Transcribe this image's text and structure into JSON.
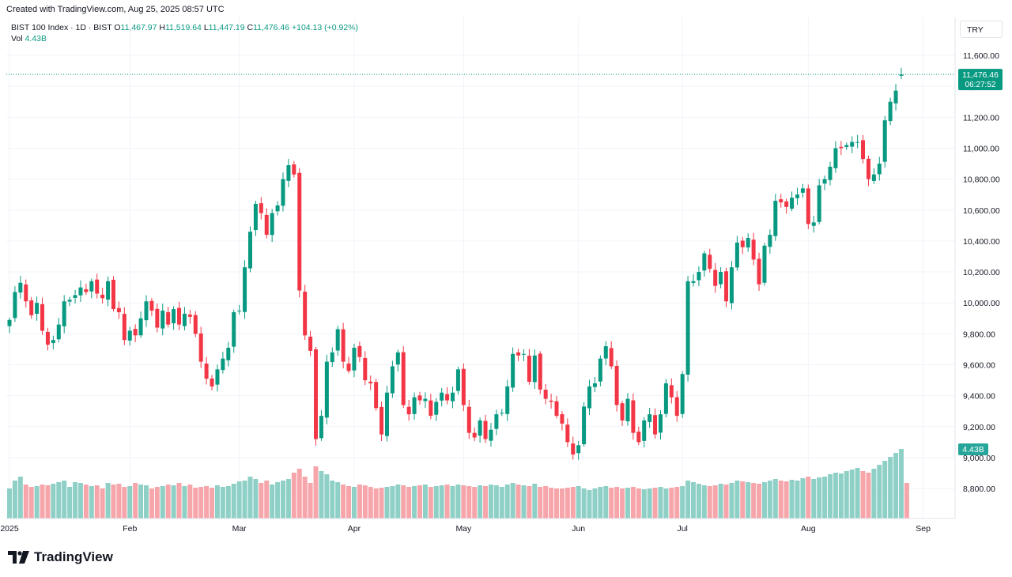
{
  "header": {
    "created_text": "Created with TradingView.com, Aug 25, 2025 08:57 UTC"
  },
  "legend": {
    "name": "BIST 100 Index · 1D · BIST",
    "open_label": "O",
    "open": "11,467.97",
    "high_label": "H",
    "high": "11,519.64",
    "low_label": "L",
    "low": "11,447.19",
    "close_label": "C",
    "close": "11,476.46",
    "change": "+104.13 (+0.92%)",
    "vol_label": "Vol",
    "vol": "4.43B"
  },
  "currency": "TRY",
  "price_tag": {
    "price": "11,476.46",
    "countdown": "06:27:52"
  },
  "volume_tag": "4.43B",
  "footer": {
    "logo_text": "TradingView"
  },
  "colors": {
    "up": "#089981",
    "down": "#f23645",
    "vol_up": "#8fd0c6",
    "vol_down": "#f6a6ab",
    "grid": "#f0f3fa"
  },
  "chart_data": {
    "type": "candlestick",
    "title": "BIST 100 Index · 1D · BIST",
    "y_ticks": [
      "11,600.00",
      "11,400.00",
      "11,200.00",
      "11,000.00",
      "10,800.00",
      "10,600.00",
      "10,400.00",
      "10,200.00",
      "10,000.00",
      "9,800.00",
      "9,600.00",
      "9,400.00",
      "9,200.00",
      "9,000.00",
      "8,800.00"
    ],
    "y_tick_values": [
      11600,
      11400,
      11200,
      11000,
      10800,
      10600,
      10400,
      10200,
      10000,
      9800,
      9600,
      9400,
      9200,
      9000,
      8800
    ],
    "ylim": [
      8620,
      11760
    ],
    "x_labels": [
      {
        "label": "2025",
        "index": 0
      },
      {
        "label": "Feb",
        "index": 22
      },
      {
        "label": "Mar",
        "index": 42
      },
      {
        "label": "Apr",
        "index": 63
      },
      {
        "label": "May",
        "index": 83
      },
      {
        "label": "Jun",
        "index": 104
      },
      {
        "label": "Jul",
        "index": 123
      },
      {
        "label": "Aug",
        "index": 146
      },
      {
        "label": "Sep",
        "index": 167
      }
    ],
    "x_count": 169,
    "grid": true,
    "close_start": 9890,
    "closes": [
      9890,
      10070,
      10130,
      10010,
      9920,
      10000,
      9820,
      9730,
      9760,
      9860,
      10010,
      10020,
      10050,
      10100,
      10070,
      10140,
      10060,
      10030,
      10140,
      9960,
      9940,
      9760,
      9820,
      9790,
      9900,
      10010,
      9950,
      9840,
      9950,
      9860,
      9960,
      9860,
      9930,
      9910,
      9800,
      9620,
      9510,
      9460,
      9570,
      9640,
      9710,
      9940,
      9950,
      10230,
      10460,
      10640,
      10580,
      10440,
      10580,
      10630,
      10800,
      10890,
      10830,
      10080,
      9790,
      9690,
      9120,
      9270,
      9620,
      9680,
      9830,
      9620,
      9560,
      9710,
      9650,
      9500,
      9480,
      9320,
      9150,
      9420,
      9590,
      9680,
      9340,
      9280,
      9390,
      9370,
      9380,
      9270,
      9360,
      9420,
      9370,
      9420,
      9570,
      9340,
      9160,
      9130,
      9240,
      9120,
      9180,
      9280,
      9290,
      9460,
      9670,
      9660,
      9670,
      9490,
      9660,
      9440,
      9380,
      9360,
      9270,
      9220,
      9100,
      9020,
      9080,
      9330,
      9460,
      9480,
      9640,
      9720,
      9590,
      9340,
      9240,
      9380,
      9160,
      9100,
      9240,
      9280,
      9150,
      9280,
      9480,
      9390,
      9270,
      9540,
      10140,
      10140,
      10200,
      10320,
      10220,
      10110,
      10200,
      10010,
      10230,
      10390,
      10360,
      10420,
      10280,
      10120,
      10370,
      10440,
      10660,
      10650,
      10620,
      10680,
      10700,
      10740,
      10510,
      10520,
      10760,
      10800,
      10880,
      11000,
      11000,
      11020,
      11040,
      11040,
      10930,
      10800,
      10830,
      10900,
      11180,
      11300,
      11372,
      11476
    ],
    "volumes": [
      0.9,
      1.0,
      1.05,
      0.95,
      0.92,
      0.93,
      0.95,
      0.94,
      0.96,
      0.98,
      1.0,
      0.92,
      0.98,
      0.97,
      0.95,
      0.93,
      0.94,
      0.9,
      0.97,
      0.95,
      0.96,
      0.92,
      0.93,
      0.97,
      0.95,
      0.94,
      0.9,
      0.92,
      0.93,
      0.95,
      0.94,
      0.97,
      0.93,
      0.95,
      0.91,
      0.92,
      0.93,
      0.91,
      0.94,
      0.92,
      0.93,
      0.96,
      0.99,
      1.0,
      1.05,
      1.02,
      0.97,
      1.0,
      0.95,
      0.98,
      1.0,
      1.02,
      1.1,
      1.15,
      1.05,
      0.97,
      1.18,
      1.12,
      1.08,
      1.0,
      0.98,
      0.95,
      0.93,
      0.92,
      0.95,
      0.94,
      0.92,
      0.9,
      0.91,
      0.92,
      0.93,
      0.95,
      0.94,
      0.92,
      0.93,
      0.94,
      0.95,
      0.92,
      0.93,
      0.94,
      0.95,
      0.93,
      0.95,
      0.94,
      0.93,
      0.92,
      0.94,
      0.93,
      0.95,
      0.94,
      0.92,
      0.95,
      0.97,
      0.95,
      0.94,
      0.93,
      0.96,
      0.92,
      0.93,
      0.91,
      0.9,
      0.9,
      0.91,
      0.92,
      0.93,
      0.9,
      0.88,
      0.9,
      0.92,
      0.93,
      0.91,
      0.92,
      0.9,
      0.91,
      0.92,
      0.9,
      0.89,
      0.9,
      0.91,
      0.92,
      0.9,
      0.91,
      0.92,
      0.93,
      1.0,
      0.98,
      0.96,
      0.94,
      0.93,
      0.94,
      0.96,
      0.95,
      0.97,
      1.0,
      0.99,
      0.98,
      0.97,
      0.96,
      0.98,
      1.0,
      1.02,
      1.0,
      0.99,
      1.01,
      1.0,
      1.03,
      1.05,
      1.02,
      1.04,
      1.05,
      1.08,
      1.1,
      1.09,
      1.12,
      1.14,
      1.16,
      1.12,
      1.1,
      1.15,
      1.2,
      1.25,
      1.3,
      1.35,
      1.4,
      0.97
    ]
  }
}
